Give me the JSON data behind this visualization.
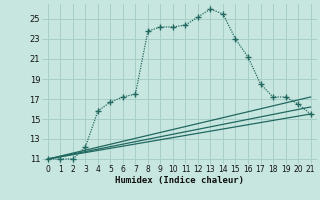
{
  "xlabel": "Humidex (Indice chaleur)",
  "background_color": "#c8e6e0",
  "grid_color": "#a8cec8",
  "line_color": "#206860",
  "xlim": [
    -0.5,
    21.5
  ],
  "ylim": [
    10.5,
    26.5
  ],
  "yticks": [
    11,
    13,
    15,
    17,
    19,
    21,
    23,
    25
  ],
  "xticks": [
    0,
    1,
    2,
    3,
    4,
    5,
    6,
    7,
    8,
    9,
    10,
    11,
    12,
    13,
    14,
    15,
    16,
    17,
    18,
    19,
    20,
    21
  ],
  "main_x": [
    0,
    1,
    2,
    3,
    4,
    5,
    6,
    7,
    8,
    9,
    10,
    11,
    12,
    13,
    14,
    15,
    16,
    17,
    18,
    19,
    20,
    21
  ],
  "main_y": [
    11,
    11,
    11,
    12.2,
    15.8,
    16.7,
    17.2,
    17.5,
    23.8,
    24.2,
    24.2,
    24.4,
    25.2,
    26.0,
    25.5,
    23.0,
    21.2,
    18.5,
    17.2,
    17.2,
    16.5,
    15.5
  ],
  "line2_x": [
    0,
    21
  ],
  "line2_y": [
    11,
    17.2
  ],
  "line3_x": [
    0,
    21
  ],
  "line3_y": [
    11,
    16.2
  ],
  "line4_x": [
    0,
    21
  ],
  "line4_y": [
    11,
    15.5
  ]
}
